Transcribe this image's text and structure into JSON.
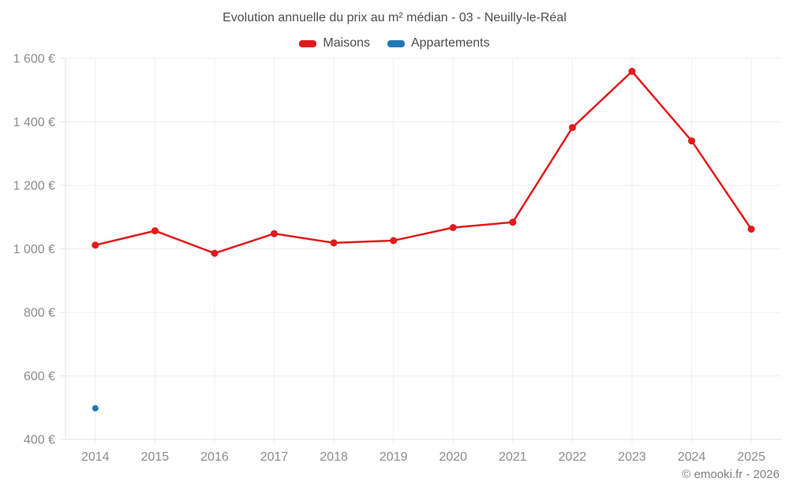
{
  "page": {
    "title": "Evolution annuelle du prix au m² médian - 03 - Neuilly-le-Réal"
  },
  "footer": {
    "credit": "© emooki.fr - 2026"
  },
  "chart_data": {
    "type": "line",
    "title": "Evolution annuelle du prix au m² médian - 03 - Neuilly-le-Réal",
    "categories": [
      "2014",
      "2015",
      "2016",
      "2017",
      "2018",
      "2019",
      "2020",
      "2021",
      "2022",
      "2023",
      "2024",
      "2025"
    ],
    "series": [
      {
        "name": "Maisons",
        "color": "#e31a1c",
        "values": [
          1012,
          1057,
          986,
          1048,
          1019,
          1026,
          1067,
          1084,
          1382,
          1559,
          1340,
          1062
        ]
      },
      {
        "name": "Appartements",
        "color": "#1f78b4",
        "values": [
          498,
          null,
          null,
          null,
          null,
          null,
          null,
          null,
          null,
          null,
          null,
          null
        ]
      }
    ],
    "ylim": [
      400,
      1600
    ],
    "yticks": [
      400,
      600,
      800,
      1000,
      1200,
      1400,
      1600
    ],
    "ytick_labels": [
      "400 €",
      "600 €",
      "800 €",
      "1 000 €",
      "1 200 €",
      "1 400 €",
      "1 600 €"
    ],
    "currency_suffix": "€",
    "grid": true,
    "legend_position": "top"
  }
}
